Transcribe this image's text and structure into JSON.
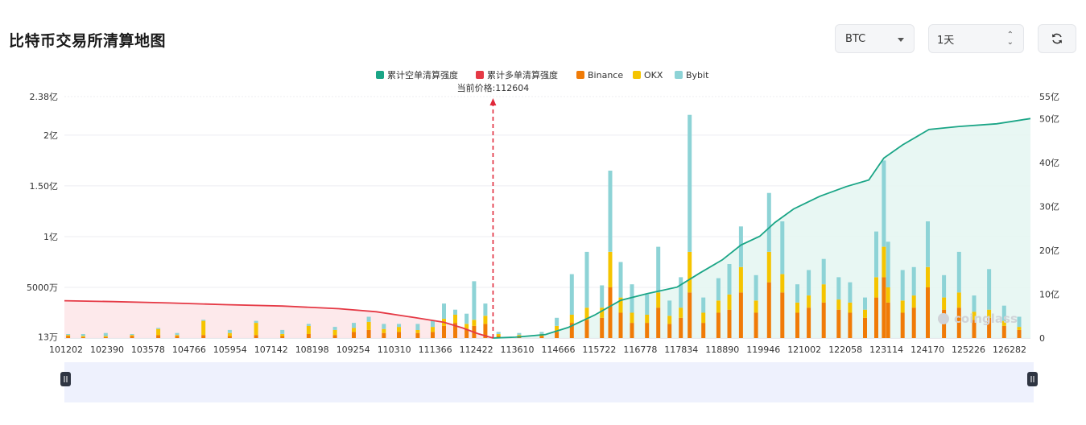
{
  "page": {
    "title": "比特币交易所清算地图",
    "coin_select": "BTC",
    "period_select": "1天",
    "refresh_icon": "refresh-icon"
  },
  "colors": {
    "short_cumulative": "#1aa586",
    "long_cumulative": "#e53945",
    "binance": "#f07b07",
    "okx": "#f5c400",
    "bybit": "#8dd3d6"
  },
  "chart_data": {
    "type": "bar",
    "current_price_label": "当前价格:112604",
    "current_price": 112604,
    "legend": [
      "累计空单清算强度",
      "累计多单清算强度",
      "Binance",
      "OKX",
      "Bybit"
    ],
    "x_tick_labels": [
      "101202",
      "102390",
      "103578",
      "104766",
      "105954",
      "107142",
      "108198",
      "109254",
      "110310",
      "111366",
      "112422",
      "113610",
      "114666",
      "115722",
      "116778",
      "117834",
      "118890",
      "119946",
      "121002",
      "122058",
      "123114",
      "124170",
      "125226",
      "126282"
    ],
    "x_range": [
      101202,
      126900
    ],
    "left_axis": {
      "ticks": [
        "13万",
        "5000万",
        "1亿",
        "1.50亿",
        "2亿",
        "2.38亿"
      ],
      "tick_values": [
        0.013,
        0.5,
        1,
        1.5,
        2,
        2.38
      ],
      "range": [
        0,
        2.38
      ],
      "unit": "亿"
    },
    "right_axis": {
      "ticks": [
        "0",
        "10亿",
        "20亿",
        "30亿",
        "40亿",
        "50亿",
        "55亿"
      ],
      "tick_values": [
        0,
        10,
        20,
        30,
        40,
        50,
        55
      ],
      "range": [
        0,
        55
      ],
      "unit": "亿"
    },
    "grid": true,
    "legend_position": "top-center",
    "cumulative_long": [
      [
        101202,
        8.5
      ],
      [
        102500,
        8.3
      ],
      [
        104000,
        8.0
      ],
      [
        105500,
        7.6
      ],
      [
        107000,
        7.3
      ],
      [
        108500,
        6.7
      ],
      [
        109500,
        6.0
      ],
      [
        110500,
        4.7
      ],
      [
        111300,
        3.6
      ],
      [
        111800,
        2.3
      ],
      [
        112200,
        1.0
      ],
      [
        112604,
        0
      ]
    ],
    "cumulative_short": [
      [
        112604,
        0
      ],
      [
        113200,
        0.2
      ],
      [
        114000,
        0.8
      ],
      [
        114600,
        2.4
      ],
      [
        115300,
        5.2
      ],
      [
        116000,
        8.6
      ],
      [
        116700,
        10.1
      ],
      [
        117500,
        11.6
      ],
      [
        118100,
        14.8
      ],
      [
        118700,
        17.8
      ],
      [
        119200,
        21.2
      ],
      [
        119700,
        23.2
      ],
      [
        120100,
        26.3
      ],
      [
        120600,
        29.4
      ],
      [
        121300,
        32.3
      ],
      [
        122000,
        34.5
      ],
      [
        122600,
        36.0
      ],
      [
        123000,
        41.0
      ],
      [
        123500,
        44.0
      ],
      [
        124200,
        47.5
      ],
      [
        125000,
        48.2
      ],
      [
        126000,
        48.8
      ],
      [
        126900,
        50.0
      ]
    ],
    "bars": [
      {
        "x": 101300,
        "b": 0.02,
        "o": 0.01,
        "y": 0.01
      },
      {
        "x": 101700,
        "b": 0.01,
        "o": 0.01,
        "y": 0.02
      },
      {
        "x": 102300,
        "b": 0.01,
        "o": 0.01,
        "y": 0.03
      },
      {
        "x": 103000,
        "b": 0.02,
        "o": 0.01,
        "y": 0.01
      },
      {
        "x": 103700,
        "b": 0.03,
        "o": 0.06,
        "y": 0.01
      },
      {
        "x": 104200,
        "b": 0.02,
        "o": 0.01,
        "y": 0.02
      },
      {
        "x": 104900,
        "b": 0.03,
        "o": 0.14,
        "y": 0.01
      },
      {
        "x": 105600,
        "b": 0.02,
        "o": 0.03,
        "y": 0.03
      },
      {
        "x": 106300,
        "b": 0.03,
        "o": 0.12,
        "y": 0.02
      },
      {
        "x": 107000,
        "b": 0.02,
        "o": 0.02,
        "y": 0.04
      },
      {
        "x": 107700,
        "b": 0.04,
        "o": 0.08,
        "y": 0.02
      },
      {
        "x": 108400,
        "b": 0.03,
        "o": 0.05,
        "y": 0.03
      },
      {
        "x": 108900,
        "b": 0.06,
        "o": 0.04,
        "y": 0.05
      },
      {
        "x": 109300,
        "b": 0.08,
        "o": 0.08,
        "y": 0.05
      },
      {
        "x": 109700,
        "b": 0.05,
        "o": 0.04,
        "y": 0.05
      },
      {
        "x": 110100,
        "b": 0.06,
        "o": 0.05,
        "y": 0.03
      },
      {
        "x": 110600,
        "b": 0.05,
        "o": 0.03,
        "y": 0.06
      },
      {
        "x": 111000,
        "b": 0.06,
        "o": 0.05,
        "y": 0.06
      },
      {
        "x": 111300,
        "b": 0.12,
        "o": 0.07,
        "y": 0.15
      },
      {
        "x": 111600,
        "b": 0.15,
        "o": 0.08,
        "y": 0.05
      },
      {
        "x": 111900,
        "b": 0.09,
        "o": 0.05,
        "y": 0.1
      },
      {
        "x": 112100,
        "b": 0.12,
        "o": 0.06,
        "y": 0.38
      },
      {
        "x": 112400,
        "b": 0.14,
        "o": 0.08,
        "y": 0.12
      },
      {
        "x": 112750,
        "b": 0.02,
        "o": 0.02,
        "y": 0.02
      },
      {
        "x": 113300,
        "b": 0.02,
        "o": 0.01,
        "y": 0.02
      },
      {
        "x": 113900,
        "b": 0.02,
        "o": 0.02,
        "y": 0.02
      },
      {
        "x": 114300,
        "b": 0.06,
        "o": 0.06,
        "y": 0.08
      },
      {
        "x": 114700,
        "b": 0.15,
        "o": 0.08,
        "y": 0.4
      },
      {
        "x": 115100,
        "b": 0.18,
        "o": 0.12,
        "y": 0.55
      },
      {
        "x": 115500,
        "b": 0.2,
        "o": 0.1,
        "y": 0.22
      },
      {
        "x": 115722,
        "b": 0.5,
        "o": 0.35,
        "y": 0.8
      },
      {
        "x": 116000,
        "b": 0.25,
        "o": 0.15,
        "y": 0.35
      },
      {
        "x": 116300,
        "b": 0.15,
        "o": 0.1,
        "y": 0.28
      },
      {
        "x": 116700,
        "b": 0.15,
        "o": 0.08,
        "y": 0.2
      },
      {
        "x": 117000,
        "b": 0.3,
        "o": 0.15,
        "y": 0.45
      },
      {
        "x": 117300,
        "b": 0.14,
        "o": 0.08,
        "y": 0.15
      },
      {
        "x": 117600,
        "b": 0.2,
        "o": 0.1,
        "y": 0.3
      },
      {
        "x": 117834,
        "b": 0.45,
        "o": 0.4,
        "y": 1.35
      },
      {
        "x": 118200,
        "b": 0.15,
        "o": 0.1,
        "y": 0.15
      },
      {
        "x": 118600,
        "b": 0.25,
        "o": 0.12,
        "y": 0.22
      },
      {
        "x": 118890,
        "b": 0.28,
        "o": 0.15,
        "y": 0.3
      },
      {
        "x": 119200,
        "b": 0.45,
        "o": 0.25,
        "y": 0.4
      },
      {
        "x": 119600,
        "b": 0.25,
        "o": 0.12,
        "y": 0.25
      },
      {
        "x": 119946,
        "b": 0.55,
        "o": 0.3,
        "y": 0.58
      },
      {
        "x": 120300,
        "b": 0.45,
        "o": 0.18,
        "y": 0.52
      },
      {
        "x": 120700,
        "b": 0.25,
        "o": 0.1,
        "y": 0.18
      },
      {
        "x": 121002,
        "b": 0.3,
        "o": 0.12,
        "y": 0.25
      },
      {
        "x": 121400,
        "b": 0.35,
        "o": 0.18,
        "y": 0.25
      },
      {
        "x": 121800,
        "b": 0.28,
        "o": 0.1,
        "y": 0.22
      },
      {
        "x": 122100,
        "b": 0.25,
        "o": 0.1,
        "y": 0.2
      },
      {
        "x": 122500,
        "b": 0.2,
        "o": 0.08,
        "y": 0.12
      },
      {
        "x": 122800,
        "b": 0.4,
        "o": 0.2,
        "y": 0.45
      },
      {
        "x": 123000,
        "b": 0.6,
        "o": 0.3,
        "y": 0.85
      },
      {
        "x": 123114,
        "b": 0.35,
        "o": 0.15,
        "y": 0.45
      },
      {
        "x": 123500,
        "b": 0.25,
        "o": 0.12,
        "y": 0.3
      },
      {
        "x": 123800,
        "b": 0.3,
        "o": 0.12,
        "y": 0.28
      },
      {
        "x": 124170,
        "b": 0.5,
        "o": 0.2,
        "y": 0.45
      },
      {
        "x": 124600,
        "b": 0.28,
        "o": 0.12,
        "y": 0.22
      },
      {
        "x": 125000,
        "b": 0.3,
        "o": 0.15,
        "y": 0.4
      },
      {
        "x": 125400,
        "b": 0.18,
        "o": 0.08,
        "y": 0.16
      },
      {
        "x": 125800,
        "b": 0.2,
        "o": 0.08,
        "y": 0.4
      },
      {
        "x": 126200,
        "b": 0.12,
        "o": 0.05,
        "y": 0.15
      },
      {
        "x": 126600,
        "b": 0.08,
        "o": 0.03,
        "y": 0.1
      }
    ],
    "watermark": "coinglass"
  }
}
